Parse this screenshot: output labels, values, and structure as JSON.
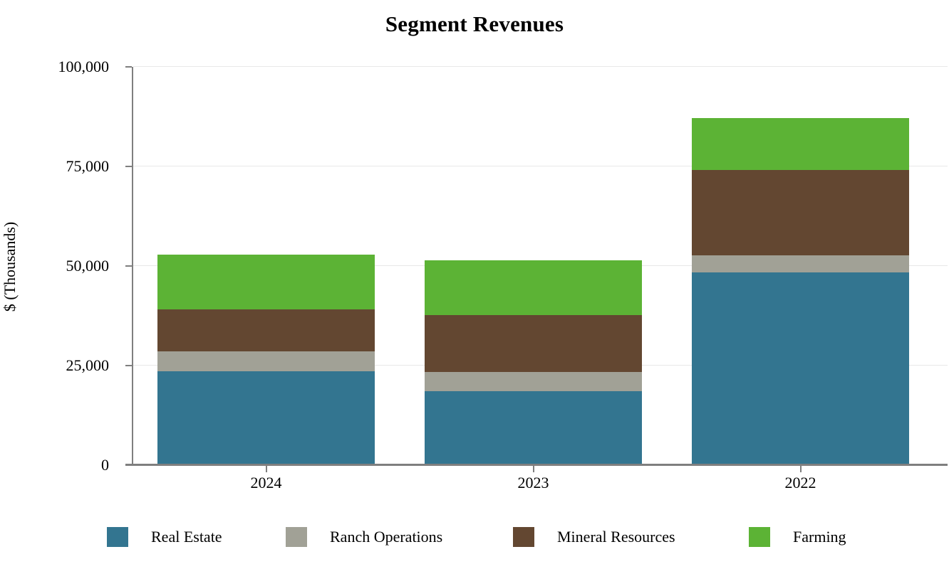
{
  "chart_data": {
    "type": "bar",
    "stacked": true,
    "title": "Segment Revenues",
    "xlabel": "",
    "ylabel": "$ (Thousands)",
    "categories": [
      "2024",
      "2023",
      "2022"
    ],
    "series": [
      {
        "name": "Real Estate",
        "color": "#337590",
        "values": [
          23300,
          18200,
          48000
        ]
      },
      {
        "name": "Ranch Operations",
        "color": "#A1A196",
        "values": [
          5000,
          4800,
          4300
        ]
      },
      {
        "name": "Mineral Resources",
        "color": "#634731",
        "values": [
          10400,
          14300,
          21400
        ]
      },
      {
        "name": "Farming",
        "color": "#5CB335",
        "values": [
          13800,
          13700,
          13000
        ]
      }
    ],
    "stack_totals": [
      52500,
      51000,
      86700
    ],
    "ylim": [
      0,
      100000
    ],
    "yticks": [
      0,
      25000,
      50000,
      75000,
      100000
    ],
    "ytick_labels": [
      "0",
      "25,000",
      "50,000",
      "75,000",
      "100,000"
    ],
    "grid": "horizontal",
    "legend_position": "bottom",
    "colors": {
      "axis": "#7F7F7F",
      "gridline": "#E8E8E8",
      "text": "#000000",
      "background": "#FFFFFF"
    }
  }
}
